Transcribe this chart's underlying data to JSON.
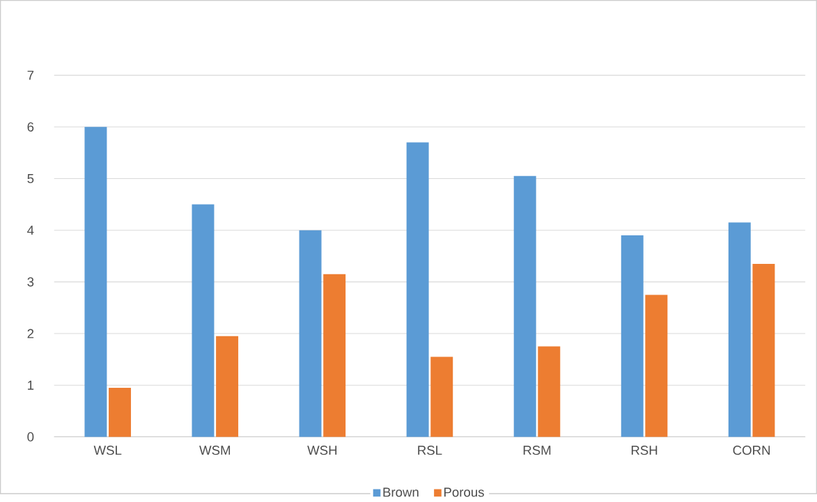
{
  "chart_data": {
    "type": "bar",
    "categories": [
      "WSL",
      "WSM",
      "WSH",
      "RSL",
      "RSM",
      "RSH",
      "CORN"
    ],
    "series": [
      {
        "name": "Brown",
        "color": "#5b9bd5",
        "values": [
          6.0,
          4.5,
          4.0,
          5.7,
          5.05,
          3.9,
          4.15
        ]
      },
      {
        "name": "Porous",
        "color": "#ed7d31",
        "values": [
          0.95,
          1.95,
          3.15,
          1.55,
          1.75,
          2.75,
          3.35
        ]
      }
    ],
    "ylim": [
      0,
      7
    ],
    "yticks": [
      0,
      1,
      2,
      3,
      4,
      5,
      6,
      7
    ],
    "grid": "y",
    "legend": "bottom"
  }
}
